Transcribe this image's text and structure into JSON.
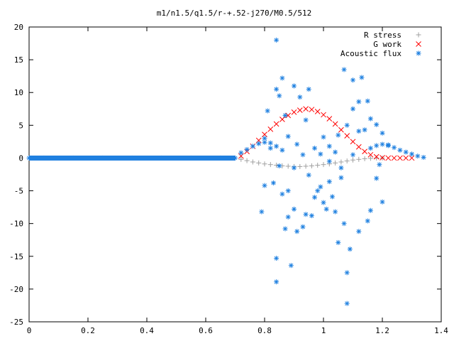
{
  "chart_data": {
    "type": "scatter",
    "title": "m1/n1.5/q1.5/r-+.52-j270/M0.5/512",
    "xlabel": "",
    "ylabel": "",
    "xlim": [
      0,
      1.4
    ],
    "ylim": [
      -25,
      20
    ],
    "x_ticks": [
      "0",
      "0.2",
      "0.4",
      "0.6",
      "0.8",
      "1",
      "1.2",
      "1.4"
    ],
    "y_ticks": [
      "20",
      "15",
      "10",
      "5",
      "0",
      "-5",
      "-10",
      "-15",
      "-20",
      "-25"
    ],
    "grid": false,
    "legend_position": "top-right",
    "series": [
      {
        "name": "R stress",
        "marker": "plus",
        "color": "#a0a0a0",
        "points": [
          [
            0.72,
            -0.2
          ],
          [
            0.74,
            -0.4
          ],
          [
            0.76,
            -0.6
          ],
          [
            0.78,
            -0.75
          ],
          [
            0.8,
            -0.9
          ],
          [
            0.82,
            -1.0
          ],
          [
            0.84,
            -1.1
          ],
          [
            0.86,
            -1.2
          ],
          [
            0.88,
            -1.25
          ],
          [
            0.9,
            -1.3
          ],
          [
            0.92,
            -1.3
          ],
          [
            0.94,
            -1.25
          ],
          [
            0.96,
            -1.2
          ],
          [
            0.98,
            -1.1
          ],
          [
            1.0,
            -1.0
          ],
          [
            1.02,
            -0.9
          ],
          [
            1.04,
            -0.75
          ],
          [
            1.06,
            -0.6
          ],
          [
            1.08,
            -0.45
          ],
          [
            1.1,
            -0.3
          ],
          [
            1.12,
            -0.2
          ],
          [
            1.14,
            -0.1
          ],
          [
            1.16,
            -0.05
          ],
          [
            1.18,
            0.0
          ],
          [
            1.2,
            0.0
          ]
        ]
      },
      {
        "name": "G work",
        "marker": "cross",
        "color": "#ff0000",
        "points": [
          [
            0.72,
            0.3
          ],
          [
            0.74,
            1.0
          ],
          [
            0.76,
            1.8
          ],
          [
            0.78,
            2.7
          ],
          [
            0.8,
            3.6
          ],
          [
            0.82,
            4.4
          ],
          [
            0.84,
            5.2
          ],
          [
            0.86,
            5.9
          ],
          [
            0.88,
            6.5
          ],
          [
            0.9,
            7.0
          ],
          [
            0.92,
            7.3
          ],
          [
            0.94,
            7.5
          ],
          [
            0.96,
            7.4
          ],
          [
            0.98,
            7.1
          ],
          [
            1.0,
            6.6
          ],
          [
            1.02,
            6.0
          ],
          [
            1.04,
            5.2
          ],
          [
            1.06,
            4.3
          ],
          [
            1.08,
            3.4
          ],
          [
            1.1,
            2.5
          ],
          [
            1.12,
            1.7
          ],
          [
            1.14,
            1.0
          ],
          [
            1.16,
            0.5
          ],
          [
            1.18,
            0.2
          ],
          [
            1.2,
            0.05
          ],
          [
            1.22,
            0.0
          ],
          [
            1.24,
            0.0
          ],
          [
            1.26,
            0.0
          ],
          [
            1.28,
            0.0
          ],
          [
            1.3,
            0.0
          ]
        ]
      },
      {
        "name": "Acoustic flux",
        "marker": "star",
        "color": "#1f80e0",
        "points": [
          [
            0.0,
            0.0
          ],
          [
            0.05,
            0.0
          ],
          [
            0.1,
            0.0
          ],
          [
            0.15,
            0.0
          ],
          [
            0.2,
            0.0
          ],
          [
            0.25,
            0.0
          ],
          [
            0.3,
            0.0
          ],
          [
            0.35,
            0.0
          ],
          [
            0.4,
            0.0
          ],
          [
            0.45,
            0.0
          ],
          [
            0.5,
            0.0
          ],
          [
            0.55,
            0.0
          ],
          [
            0.6,
            0.0
          ],
          [
            0.65,
            0.0
          ],
          [
            0.7,
            0.0
          ],
          [
            0.72,
            0.8
          ],
          [
            0.74,
            1.3
          ],
          [
            0.76,
            1.8
          ],
          [
            0.78,
            2.2
          ],
          [
            0.8,
            2.4
          ],
          [
            0.82,
            2.3
          ],
          [
            0.84,
            1.8
          ],
          [
            0.86,
            1.2
          ],
          [
            1.16,
            1.5
          ],
          [
            1.18,
            1.9
          ],
          [
            1.2,
            2.1
          ],
          [
            1.22,
            1.9
          ],
          [
            1.24,
            1.6
          ],
          [
            1.26,
            1.2
          ],
          [
            1.28,
            0.9
          ],
          [
            1.3,
            0.6
          ],
          [
            1.32,
            0.3
          ],
          [
            1.34,
            0.1
          ],
          [
            0.84,
            18.0
          ],
          [
            0.86,
            12.2
          ],
          [
            0.84,
            10.5
          ],
          [
            0.85,
            9.5
          ],
          [
            0.81,
            7.2
          ],
          [
            0.9,
            11.0
          ],
          [
            0.92,
            9.3
          ],
          [
            0.95,
            10.5
          ],
          [
            1.07,
            13.5
          ],
          [
            1.1,
            11.9
          ],
          [
            1.13,
            12.3
          ],
          [
            1.12,
            8.6
          ],
          [
            1.15,
            8.7
          ],
          [
            0.8,
            3.0
          ],
          [
            0.82,
            1.5
          ],
          [
            0.85,
            -1.2
          ],
          [
            0.83,
            -3.8
          ],
          [
            0.86,
            -5.5
          ],
          [
            0.88,
            -5.0
          ],
          [
            0.8,
            -4.2
          ],
          [
            0.79,
            -8.2
          ],
          [
            0.87,
            -10.8
          ],
          [
            0.88,
            -9.0
          ],
          [
            0.91,
            -11.2
          ],
          [
            0.9,
            -7.8
          ],
          [
            0.93,
            -10.5
          ],
          [
            0.84,
            -15.3
          ],
          [
            0.84,
            -18.9
          ],
          [
            0.89,
            -16.4
          ],
          [
            0.94,
            -8.6
          ],
          [
            0.96,
            -8.8
          ],
          [
            0.97,
            -6.0
          ],
          [
            0.98,
            -5.0
          ],
          [
            0.99,
            -4.4
          ],
          [
            1.0,
            -6.8
          ],
          [
            1.01,
            -7.8
          ],
          [
            1.02,
            -3.6
          ],
          [
            1.03,
            -5.9
          ],
          [
            1.04,
            -8.2
          ],
          [
            1.05,
            -12.9
          ],
          [
            1.06,
            -3.0
          ],
          [
            1.07,
            -10.0
          ],
          [
            1.08,
            -17.5
          ],
          [
            1.09,
            -13.9
          ],
          [
            1.08,
            -22.2
          ],
          [
            1.12,
            -11.2
          ],
          [
            1.15,
            -9.6
          ],
          [
            1.16,
            -8.0
          ],
          [
            1.18,
            -3.1
          ],
          [
            1.2,
            -6.7
          ],
          [
            1.0,
            3.2
          ],
          [
            1.02,
            1.8
          ],
          [
            1.04,
            0.9
          ],
          [
            0.97,
            1.5
          ],
          [
            0.93,
            0.5
          ],
          [
            0.91,
            2.1
          ],
          [
            0.88,
            3.3
          ],
          [
            0.9,
            -1.5
          ],
          [
            0.95,
            -2.6
          ],
          [
            1.06,
            -1.5
          ],
          [
            1.1,
            0.5
          ],
          [
            1.12,
            4.1
          ],
          [
            1.14,
            4.3
          ],
          [
            1.16,
            6.0
          ],
          [
            1.18,
            5.1
          ],
          [
            1.2,
            3.8
          ],
          [
            1.22,
            2.0
          ],
          [
            1.19,
            -1.0
          ],
          [
            0.87,
            6.5
          ],
          [
            0.94,
            5.8
          ],
          [
            1.05,
            3.5
          ],
          [
            1.08,
            5.0
          ],
          [
            1.1,
            7.5
          ],
          [
            0.99,
            0.6
          ],
          [
            1.02,
            -0.5
          ]
        ]
      }
    ]
  }
}
